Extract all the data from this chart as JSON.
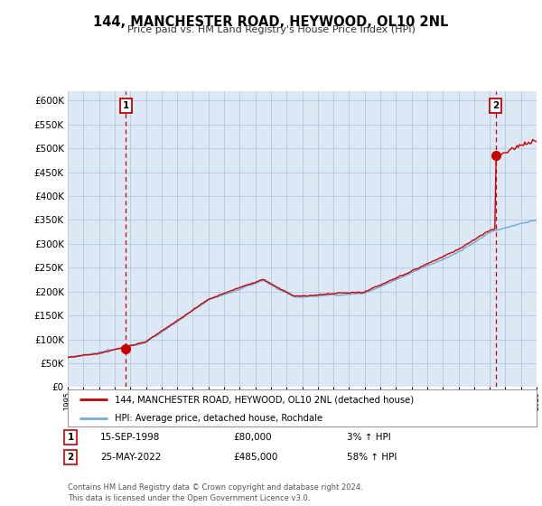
{
  "title": "144, MANCHESTER ROAD, HEYWOOD, OL10 2NL",
  "subtitle": "Price paid vs. HM Land Registry's House Price Index (HPI)",
  "legend_line1": "144, MANCHESTER ROAD, HEYWOOD, OL10 2NL (detached house)",
  "legend_line2": "HPI: Average price, detached house, Rochdale",
  "transaction1_label": "1",
  "transaction1_date": "15-SEP-1998",
  "transaction1_price": "£80,000",
  "transaction1_hpi": "3% ↑ HPI",
  "transaction2_label": "2",
  "transaction2_date": "25-MAY-2022",
  "transaction2_price": "£485,000",
  "transaction2_hpi": "58% ↑ HPI",
  "footnote": "Contains HM Land Registry data © Crown copyright and database right 2024.\nThis data is licensed under the Open Government Licence v3.0.",
  "hpi_color": "#7aabdb",
  "price_color": "#cc0000",
  "marker_color": "#cc0000",
  "vline_color": "#cc0000",
  "background_color": "#ffffff",
  "chart_bg_color": "#dce9f5",
  "grid_color": "#b0c8e0",
  "ylim_min": 0,
  "ylim_max": 620000,
  "yticks": [
    0,
    50000,
    100000,
    150000,
    200000,
    250000,
    300000,
    350000,
    400000,
    450000,
    500000,
    550000,
    600000
  ],
  "year_start": 1995,
  "year_end": 2025,
  "transaction1_year": 1998.71,
  "transaction2_year": 2022.39,
  "t1_price": 80000,
  "t2_price": 485000
}
